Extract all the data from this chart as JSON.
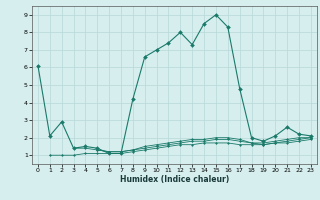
{
  "xlabel": "Humidex (Indice chaleur)",
  "ylabel": "",
  "background_color": "#d6eeee",
  "grid_color": "#b8d8d8",
  "line_color": "#1a7a6a",
  "xlim": [
    -0.5,
    23.5
  ],
  "ylim": [
    0.5,
    9.5
  ],
  "xticks": [
    0,
    1,
    2,
    3,
    4,
    5,
    6,
    7,
    8,
    9,
    10,
    11,
    12,
    13,
    14,
    15,
    16,
    17,
    18,
    19,
    20,
    21,
    22,
    23
  ],
  "yticks": [
    1,
    2,
    3,
    4,
    5,
    6,
    7,
    8,
    9
  ],
  "series": [
    [
      0,
      6.1
    ],
    [
      1,
      2.1
    ],
    [
      2,
      2.9
    ],
    [
      3,
      1.4
    ],
    [
      4,
      1.5
    ],
    [
      5,
      1.4
    ],
    [
      6,
      1.1
    ],
    [
      7,
      1.1
    ],
    [
      8,
      4.2
    ],
    [
      9,
      6.6
    ],
    [
      10,
      7.0
    ],
    [
      11,
      7.4
    ],
    [
      12,
      8.0
    ],
    [
      13,
      7.3
    ],
    [
      14,
      8.5
    ],
    [
      15,
      9.0
    ],
    [
      16,
      8.3
    ],
    [
      17,
      4.8
    ],
    [
      18,
      2.0
    ],
    [
      19,
      1.8
    ],
    [
      20,
      2.1
    ],
    [
      21,
      2.6
    ],
    [
      22,
      2.2
    ],
    [
      23,
      2.1
    ]
  ],
  "flat_series": [
    [
      [
        1,
        1.0
      ],
      [
        2,
        1.0
      ],
      [
        3,
        1.0
      ],
      [
        4,
        1.1
      ],
      [
        5,
        1.1
      ],
      [
        6,
        1.1
      ],
      [
        7,
        1.1
      ],
      [
        8,
        1.2
      ],
      [
        9,
        1.3
      ],
      [
        10,
        1.4
      ],
      [
        11,
        1.5
      ],
      [
        12,
        1.6
      ],
      [
        13,
        1.6
      ],
      [
        14,
        1.7
      ],
      [
        15,
        1.7
      ],
      [
        16,
        1.7
      ],
      [
        17,
        1.6
      ],
      [
        18,
        1.6
      ],
      [
        19,
        1.6
      ],
      [
        20,
        1.7
      ],
      [
        21,
        1.8
      ],
      [
        22,
        1.9
      ],
      [
        23,
        2.0
      ]
    ],
    [
      [
        3,
        1.4
      ],
      [
        4,
        1.4
      ],
      [
        5,
        1.3
      ],
      [
        6,
        1.2
      ],
      [
        7,
        1.2
      ],
      [
        8,
        1.3
      ],
      [
        9,
        1.4
      ],
      [
        10,
        1.5
      ],
      [
        11,
        1.6
      ],
      [
        12,
        1.7
      ],
      [
        13,
        1.8
      ],
      [
        14,
        1.8
      ],
      [
        15,
        1.9
      ],
      [
        16,
        1.9
      ],
      [
        17,
        1.8
      ],
      [
        18,
        1.7
      ],
      [
        19,
        1.7
      ],
      [
        20,
        1.8
      ],
      [
        21,
        1.9
      ],
      [
        22,
        2.0
      ],
      [
        23,
        2.0
      ]
    ],
    [
      [
        5,
        1.3
      ],
      [
        6,
        1.2
      ],
      [
        7,
        1.2
      ],
      [
        8,
        1.3
      ],
      [
        9,
        1.5
      ],
      [
        10,
        1.6
      ],
      [
        11,
        1.7
      ],
      [
        12,
        1.8
      ],
      [
        13,
        1.9
      ],
      [
        14,
        1.9
      ],
      [
        15,
        2.0
      ],
      [
        16,
        2.0
      ],
      [
        17,
        1.9
      ],
      [
        18,
        1.7
      ],
      [
        19,
        1.6
      ],
      [
        20,
        1.7
      ],
      [
        21,
        1.7
      ],
      [
        22,
        1.8
      ],
      [
        23,
        1.9
      ]
    ]
  ]
}
